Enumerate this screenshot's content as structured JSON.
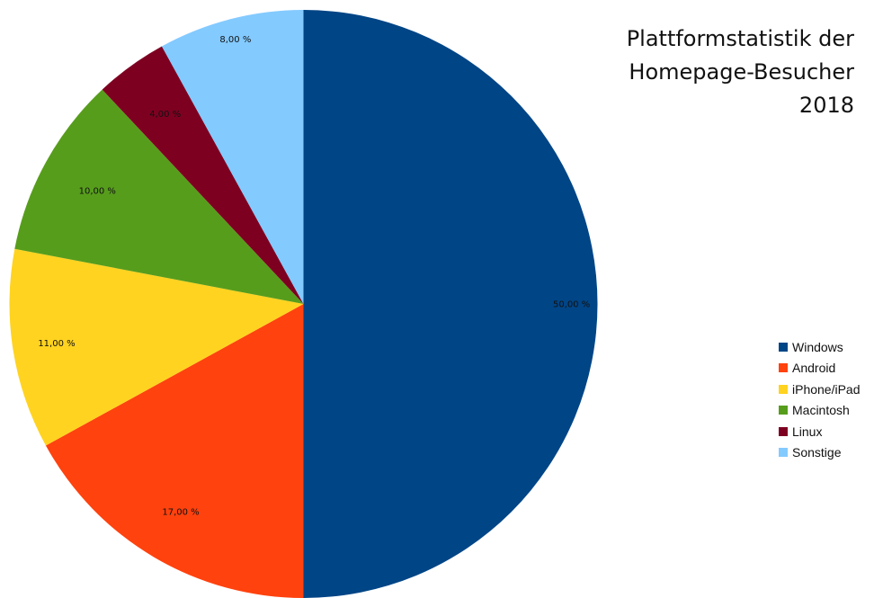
{
  "chart_data": {
    "type": "pie",
    "title": [
      "Plattformstatistik der",
      "Homepage-Besucher",
      "2018"
    ],
    "categories": [
      "Windows",
      "Android",
      "iPhone/iPad",
      "Macintosh",
      "Linux",
      "Sonstige"
    ],
    "values": [
      50,
      17,
      11,
      10,
      4,
      8
    ],
    "value_labels": [
      "50,00 %",
      "17,00 %",
      "11,00 %",
      "10,00 %",
      "4,00 %",
      "8,00 %"
    ],
    "colors": [
      "#004586",
      "#ff420e",
      "#ffd320",
      "#579d1c",
      "#7e0021",
      "#83caff"
    ],
    "start_angle": "12 o'clock",
    "direction": "clockwise",
    "legend_position": "right"
  }
}
